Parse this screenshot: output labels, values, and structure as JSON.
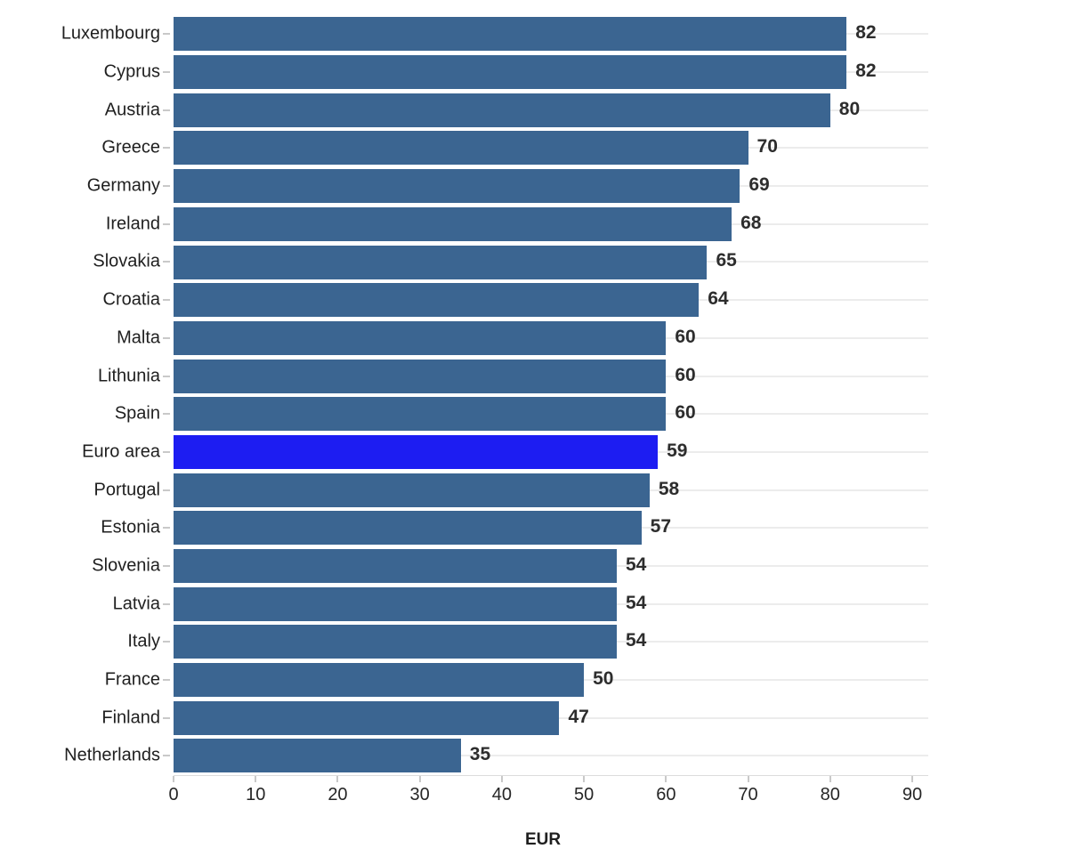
{
  "chart_data": {
    "type": "bar",
    "orientation": "horizontal",
    "title": "",
    "xlabel": "EUR",
    "ylabel": "",
    "categories": [
      "Luxembourg",
      "Cyprus",
      "Austria",
      "Greece",
      "Germany",
      "Ireland",
      "Slovakia",
      "Croatia",
      "Malta",
      "Lithunia",
      "Spain",
      "Euro area",
      "Portugal",
      "Estonia",
      "Slovenia",
      "Latvia",
      "Italy",
      "France",
      "Finland",
      "Netherlands"
    ],
    "values": [
      82,
      82,
      80,
      70,
      69,
      68,
      65,
      64,
      60,
      60,
      60,
      59,
      58,
      57,
      54,
      54,
      54,
      50,
      47,
      35
    ],
    "value_labels": [
      "82",
      "82",
      "80",
      "70",
      "69",
      "68",
      "65",
      "64",
      "60",
      "60",
      "60",
      "59",
      "58",
      "57",
      "54",
      "54",
      "54",
      "50",
      "47",
      "35"
    ],
    "highlight_category": "Euro area",
    "xticks": [
      0,
      10,
      20,
      30,
      40,
      50,
      60,
      70,
      80,
      90
    ],
    "xlim": [
      0,
      92
    ],
    "grid": "horizontal-category-lines",
    "legend": "none",
    "colors": {
      "bar": "#3b6591",
      "highlight": "#1d1df2",
      "gridline": "#ececec",
      "axis_line": "#dcdcdc",
      "tick_mark": "#c9c9c9",
      "category_label": "#1f1f1f",
      "value_label": "#2d2d2d",
      "tick_label": "#262626",
      "background": "#ffffff"
    }
  }
}
